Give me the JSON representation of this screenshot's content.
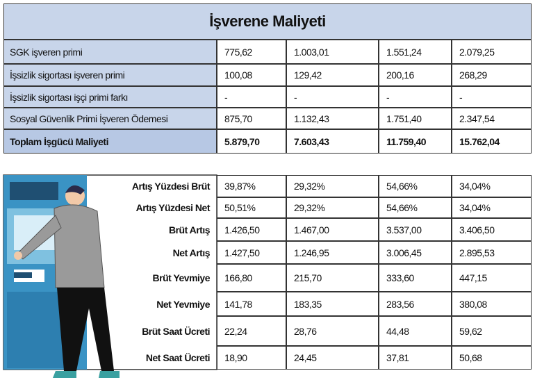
{
  "employer_cost": {
    "title": "İşverene Maliyeti",
    "rows": [
      {
        "label": "SGK işveren primi",
        "values": [
          "775,62",
          "1.003,01",
          "1.551,24",
          "2.079,25"
        ]
      },
      {
        "label": "İşsizlik sigortası işveren primi",
        "values": [
          "100,08",
          "129,42",
          "200,16",
          "268,29"
        ]
      },
      {
        "label": "İşsizlik sigortası işçi primi farkı",
        "values": [
          "-",
          "-",
          "-",
          "-"
        ]
      },
      {
        "label": "Sosyal Güvenlik Primi İşveren Ödemesi",
        "values": [
          "875,70",
          "1.132,43",
          "1.751,40",
          "2.347,54"
        ]
      },
      {
        "label": "Toplam İşgücü Maliyeti",
        "values": [
          "5.879,70",
          "7.603,43",
          "11.759,40",
          "15.762,04"
        ]
      }
    ]
  },
  "increases": {
    "rows": [
      {
        "label": "Artış Yüzdesi Brüt",
        "values": [
          "39,87%",
          "29,32%",
          "54,66%",
          "34,04%"
        ]
      },
      {
        "label": "Artış Yüzdesi Net",
        "values": [
          "50,51%",
          "29,32%",
          "54,66%",
          "34,04%"
        ]
      },
      {
        "label": "Brüt Artış",
        "values": [
          "1.426,50",
          "1.467,00",
          "3.537,00",
          "3.406,50"
        ]
      },
      {
        "label": "Net Artış",
        "values": [
          "1.427,50",
          "1.246,95",
          "3.006,45",
          "2.895,53"
        ]
      },
      {
        "label": "Brüt Yevmiye",
        "values": [
          "166,80",
          "215,70",
          "333,60",
          "447,15"
        ]
      },
      {
        "label": "Net Yevmiye",
        "values": [
          "141,78",
          "183,35",
          "283,56",
          "380,08"
        ]
      },
      {
        "label": "Brüt Saat Ücreti",
        "values": [
          "22,24",
          "28,76",
          "44,48",
          "59,62"
        ]
      },
      {
        "label": "Net Saat Ücreti",
        "values": [
          "18,90",
          "24,45",
          "37,81",
          "50,68"
        ]
      }
    ]
  }
}
